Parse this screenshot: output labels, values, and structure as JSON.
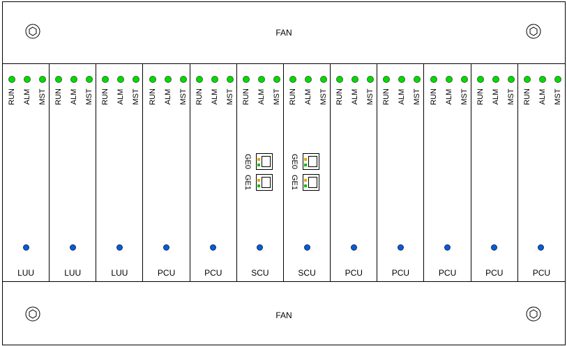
{
  "fan_top": {
    "label": "FAN"
  },
  "fan_bottom": {
    "label": "FAN"
  },
  "led_labels": [
    "RUN",
    "ALM",
    "MST"
  ],
  "port_labels": [
    "GE0",
    "GE1"
  ],
  "cards": [
    {
      "name": "LUU",
      "has_ports": false
    },
    {
      "name": "LUU",
      "has_ports": false
    },
    {
      "name": "LUU",
      "has_ports": false
    },
    {
      "name": "PCU",
      "has_ports": false
    },
    {
      "name": "PCU",
      "has_ports": false
    },
    {
      "name": "SCU",
      "has_ports": true
    },
    {
      "name": "SCU",
      "has_ports": true
    },
    {
      "name": "PCU",
      "has_ports": false
    },
    {
      "name": "PCU",
      "has_ports": false
    },
    {
      "name": "PCU",
      "has_ports": false
    },
    {
      "name": "PCU",
      "has_ports": false
    },
    {
      "name": "PCU",
      "has_ports": false
    }
  ],
  "colors": {
    "led_green": "#00dd00",
    "status_blue": "#0a5cd6",
    "port_led_amber": "#e6a800",
    "port_led_green": "#00bb00"
  }
}
